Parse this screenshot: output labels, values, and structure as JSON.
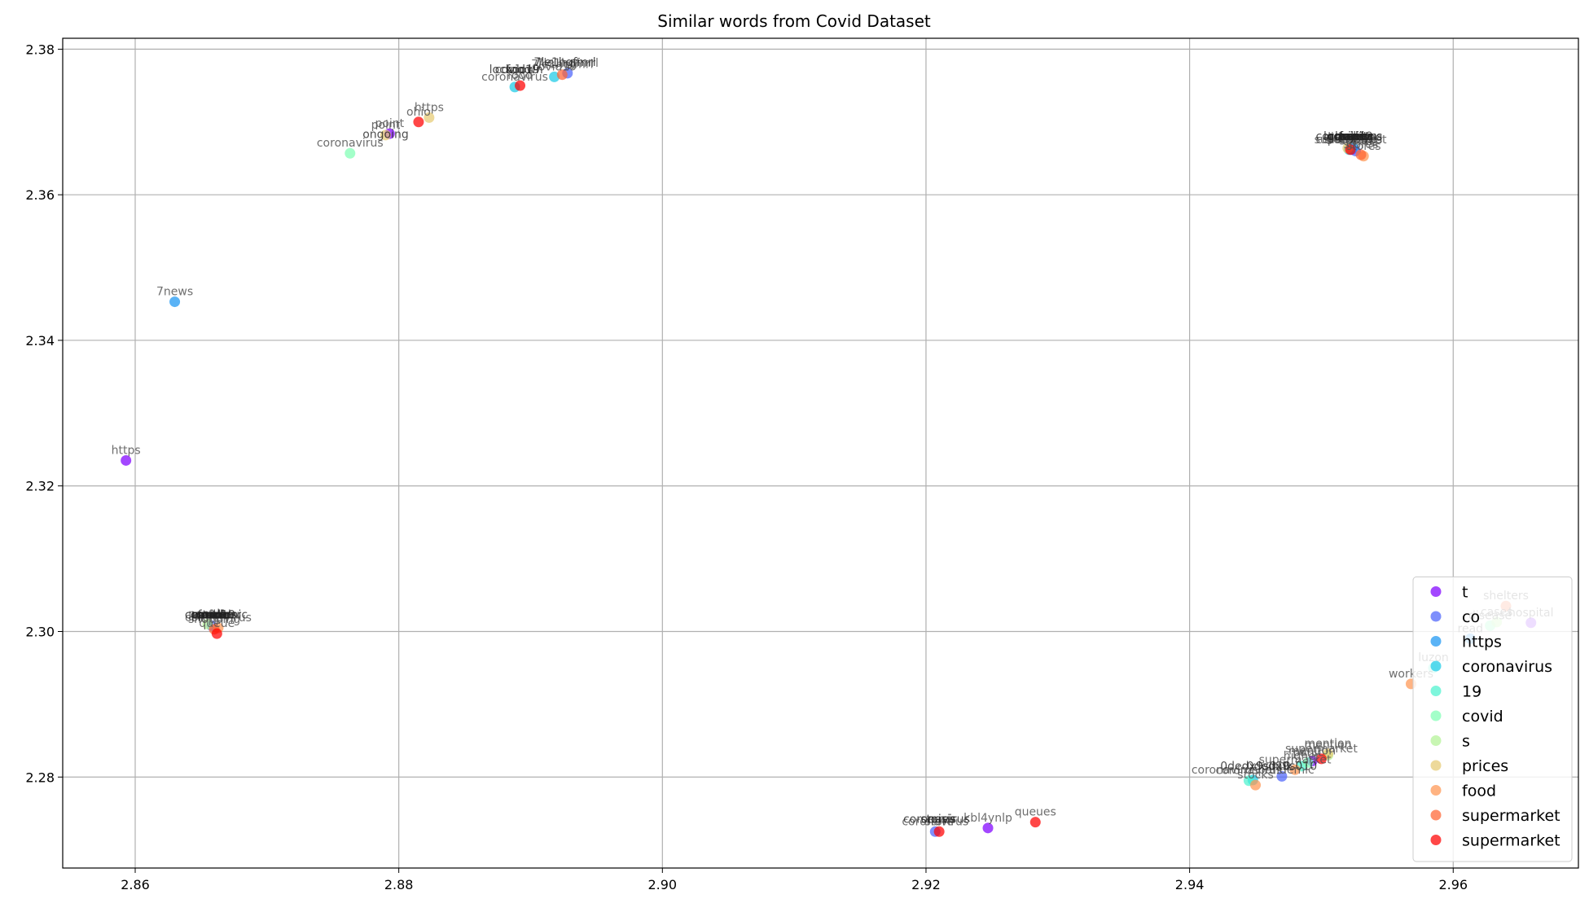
{
  "chart_data": {
    "type": "scatter",
    "title": "Similar words from Covid Dataset",
    "xlabel": "",
    "ylabel": "",
    "xlim": [
      2.8545,
      2.9695
    ],
    "ylim": [
      2.2675,
      2.3815
    ],
    "x_ticks": [
      2.86,
      2.88,
      2.9,
      2.92,
      2.94,
      2.96
    ],
    "x_tick_labels": [
      "2.86",
      "2.88",
      "2.90",
      "2.92",
      "2.94",
      "2.96"
    ],
    "y_ticks": [
      2.28,
      2.3,
      2.32,
      2.34,
      2.36,
      2.38
    ],
    "y_tick_labels": [
      "2.28",
      "2.30",
      "2.32",
      "2.34",
      "2.36",
      "2.38"
    ],
    "grid": true,
    "legend_position": "bottom-right",
    "series": [
      {
        "name": "t",
        "color": "#8000ff",
        "points": [
          {
            "x": 2.8593,
            "y": 2.3235,
            "label": "https"
          },
          {
            "x": 2.8793,
            "y": 2.3684,
            "label": "point"
          },
          {
            "x": 2.9247,
            "y": 2.273,
            "label": "kbl4ynlp"
          },
          {
            "x": 2.9493,
            "y": 2.2822,
            "label": "mention"
          },
          {
            "x": 2.9659,
            "y": 2.3012,
            "label": "hospital"
          },
          {
            "x": 2.9523,
            "y": 2.3662,
            "label": "shopping"
          }
        ]
      },
      {
        "name": "co",
        "color": "#4c64fb",
        "points": [
          {
            "x": 2.9207,
            "y": 2.2725,
            "label": "coronavirus"
          },
          {
            "x": 2.947,
            "y": 2.2801,
            "label": "mix"
          },
          {
            "x": 2.8658,
            "y": 2.3008,
            "label": "online"
          },
          {
            "x": 2.8928,
            "y": 2.3767,
            "label": "7le1hgfmrl"
          },
          {
            "x": 2.9526,
            "y": 2.366,
            "label": "social"
          }
        ]
      },
      {
        "name": "https",
        "color": "#1a96f3",
        "points": [
          {
            "x": 2.863,
            "y": 2.3453,
            "label": "7news"
          },
          {
            "x": 2.9613,
            "y": 2.299,
            "label": "read"
          },
          {
            "x": 2.9524,
            "y": 2.3665,
            "label": "distancing"
          }
        ]
      },
      {
        "name": "coronavirus",
        "color": "#1acbe6",
        "points": [
          {
            "x": 2.8888,
            "y": 2.3748,
            "label": "coronavirus"
          },
          {
            "x": 2.8918,
            "y": 2.3762,
            "label": "covid19"
          },
          {
            "x": 2.9448,
            "y": 2.2796,
            "label": "coronaviruspandemic"
          },
          {
            "x": 2.9521,
            "y": 2.3662,
            "label": "coronavirus"
          }
        ]
      },
      {
        "name": "19",
        "color": "#4cf2ce",
        "points": [
          {
            "x": 2.9445,
            "y": 2.2795,
            "label": "coronavirus"
          },
          {
            "x": 2.9585,
            "y": 2.295,
            "label": "luzon"
          },
          {
            "x": 2.9485,
            "y": 2.2815,
            "label": "higher"
          }
        ]
      },
      {
        "name": "covid",
        "color": "#80ffb4",
        "points": [
          {
            "x": 2.8763,
            "y": 2.3657,
            "label": "coronavirus"
          },
          {
            "x": 2.9628,
            "y": 2.3008,
            "label": "disease"
          },
          {
            "x": 2.949,
            "y": 2.282,
            "label": "panic"
          }
        ]
      },
      {
        "name": "s",
        "color": "#b3f295",
        "points": [
          {
            "x": 2.8655,
            "y": 2.301,
            "label": "people"
          },
          {
            "x": 2.9505,
            "y": 2.283,
            "label": "mention"
          },
          {
            "x": 2.9633,
            "y": 2.3013,
            "label": "cases"
          }
        ]
      },
      {
        "name": "prices",
        "color": "#e6cb73",
        "points": [
          {
            "x": 2.879,
            "y": 2.3682,
            "label": "point"
          },
          {
            "x": 2.8823,
            "y": 2.3706,
            "label": "https"
          },
          {
            "x": 2.9505,
            "y": 2.2832,
            "label": "mention"
          },
          {
            "x": 2.952,
            "y": 2.3664,
            "label": "grocery"
          }
        ]
      },
      {
        "name": "food",
        "color": "#ff9652",
        "points": [
          {
            "x": 2.9568,
            "y": 2.2928,
            "label": "workers"
          },
          {
            "x": 2.945,
            "y": 2.2789,
            "label": "stocks"
          },
          {
            "x": 2.948,
            "y": 2.281,
            "label": "supermarket"
          },
          {
            "x": 2.8663,
            "y": 2.3005,
            "label": "coronavirus"
          },
          {
            "x": 2.9532,
            "y": 2.3653,
            "label": "stores"
          }
        ]
      },
      {
        "name": "supermarket",
        "color": "#ff6432",
        "points": [
          {
            "x": 2.964,
            "y": 2.3035,
            "label": "shelters"
          },
          {
            "x": 2.8924,
            "y": 2.3765,
            "label": "7le1hgfmrl"
          },
          {
            "x": 2.953,
            "y": 2.3655,
            "label": "stores"
          },
          {
            "x": 2.866,
            "y": 2.3003,
            "label": "shopping"
          }
        ]
      },
      {
        "name": "supermarket",
        "color": "#ff0000",
        "points": [
          {
            "x": 2.8815,
            "y": 2.37,
            "label": "ohio"
          },
          {
            "x": 2.8892,
            "y": 2.375,
            "label": "food"
          },
          {
            "x": 2.9283,
            "y": 2.2738,
            "label": "queues"
          },
          {
            "x": 2.95,
            "y": 2.2825,
            "label": "supermarket"
          },
          {
            "x": 2.921,
            "y": 2.2725,
            "label": "store"
          },
          {
            "x": 2.8662,
            "y": 2.2997,
            "label": "queue"
          },
          {
            "x": 2.9522,
            "y": 2.3662,
            "label": "supermarket"
          }
        ]
      }
    ],
    "stacked_labels": [
      {
        "x": 2.9521,
        "y": 2.3666,
        "label": "coronavirus"
      },
      {
        "x": 2.9522,
        "y": 2.3666,
        "label": "lockdown"
      },
      {
        "x": 2.9524,
        "y": 2.3666,
        "label": "panic"
      },
      {
        "x": 2.9525,
        "y": 2.3666,
        "label": "buying"
      },
      {
        "x": 2.9521,
        "y": 2.3666,
        "label": "grocery"
      },
      {
        "x": 2.9522,
        "y": 2.3666,
        "label": "covid19"
      },
      {
        "x": 2.9523,
        "y": 2.3666,
        "label": "food"
      },
      {
        "x": 2.9524,
        "y": 2.3666,
        "label": "toilet"
      },
      {
        "x": 2.9526,
        "y": 2.3666,
        "label": "paper"
      },
      {
        "x": 2.8657,
        "y": 2.3009,
        "label": "food"
      },
      {
        "x": 2.8658,
        "y": 2.3009,
        "label": "price"
      },
      {
        "x": 2.8658,
        "y": 2.3009,
        "label": "stock"
      },
      {
        "x": 2.8661,
        "y": 2.3009,
        "label": "more"
      },
      {
        "x": 2.866,
        "y": 2.3009,
        "label": "workers"
      },
      {
        "x": 2.8659,
        "y": 2.3009,
        "label": "consumer"
      },
      {
        "x": 2.8661,
        "y": 2.3009,
        "label": "panic"
      },
      {
        "x": 2.8659,
        "y": 2.3009,
        "label": "covid19"
      },
      {
        "x": 2.8664,
        "y": 2.3009,
        "label": "pandemic"
      },
      {
        "x": 2.8662,
        "y": 2.3009,
        "label": "amid"
      },
      {
        "x": 2.879,
        "y": 2.3669,
        "label": "ongoing"
      },
      {
        "x": 2.8889,
        "y": 2.3758,
        "label": "lockdown"
      },
      {
        "x": 2.8891,
        "y": 2.3758,
        "label": "food"
      },
      {
        "x": 2.889,
        "y": 2.3758,
        "label": "covid19"
      },
      {
        "x": 2.8926,
        "y": 2.3768,
        "label": "7le1hgfmrl"
      },
      {
        "x": 2.9208,
        "y": 2.2728,
        "label": "coronavirus"
      },
      {
        "x": 2.9209,
        "y": 2.2728,
        "label": "stores"
      },
      {
        "x": 2.9212,
        "y": 2.2728,
        "label": "crisis"
      },
      {
        "x": 2.945,
        "y": 2.2801,
        "label": "0dedx9s010"
      },
      {
        "x": 2.947,
        "y": 2.2801,
        "label": "0dedx9s010"
      }
    ]
  }
}
